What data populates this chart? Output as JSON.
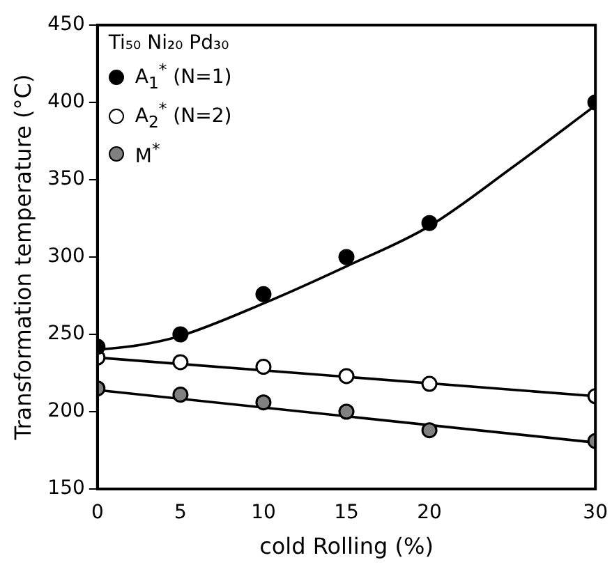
{
  "chart_data": {
    "type": "scatter",
    "xlabel": "cold Rolling (%)",
    "ylabel": "Transformation temperature (°C)",
    "legend_title": "Ti₅₀ Ni₂₀ Pd₃₀",
    "legend": "top left",
    "grid": false,
    "marker": "circle",
    "xlim": [
      0,
      30
    ],
    "xticks": [
      0,
      5,
      10,
      15,
      20,
      30
    ],
    "ylim": [
      150,
      450
    ],
    "yticks": [
      150,
      200,
      250,
      300,
      350,
      400,
      450
    ],
    "series": [
      {
        "name": "A$_{1}$$^{*}$ (N=1)",
        "color": "#000000",
        "x": [
          0,
          5,
          10,
          15,
          20,
          30
        ],
        "values": [
          242,
          250,
          276,
          300,
          322,
          400
        ]
      },
      {
        "name": "A$_{2}$$^{*}$ (N=2)",
        "color": "#ffffff",
        "x": [
          0,
          5,
          10,
          15,
          20,
          30
        ],
        "values": [
          235,
          232,
          229,
          223,
          218,
          210
        ]
      },
      {
        "name": "M$^{*}$",
        "color": "#808080",
        "x": [
          0,
          5,
          10,
          15,
          20,
          30
        ],
        "values": [
          215,
          211,
          206,
          200,
          188,
          181
        ]
      },
      {
        "type": "line",
        "color": "#000000",
        "marker": "none",
        "x": [
          0,
          2.5,
          5,
          10,
          15,
          20,
          25,
          30
        ],
        "values": [
          240,
          243,
          249,
          270,
          294,
          320,
          358,
          398
        ]
      },
      {
        "type": "line",
        "color": "#000000",
        "marker": "none",
        "x": [
          0,
          30
        ],
        "values": [
          235,
          210
        ]
      },
      {
        "type": "line",
        "color": "#000000",
        "marker": "none",
        "x": [
          0,
          30
        ],
        "values": [
          214,
          180
        ]
      }
    ]
  }
}
